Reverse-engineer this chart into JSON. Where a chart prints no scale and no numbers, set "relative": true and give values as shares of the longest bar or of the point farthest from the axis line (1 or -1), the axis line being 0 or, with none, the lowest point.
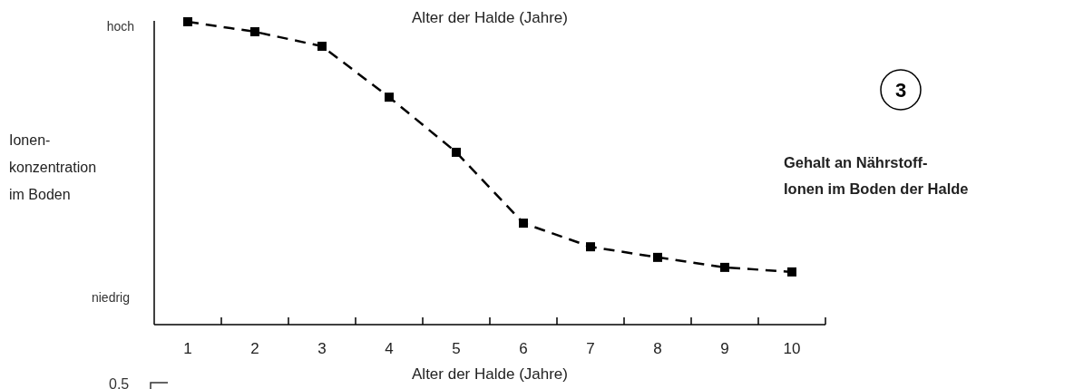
{
  "chart_data": {
    "type": "line",
    "title": "Gehalt an Nährstoff-Ionen im Boden der Halde",
    "xlabel": "Alter der Halde (Jahre)",
    "ylabel": "Ionen-konzentration im Boden",
    "relative": true,
    "categories": [
      "1",
      "2",
      "3",
      "4",
      "5",
      "6",
      "7",
      "8",
      "9",
      "10"
    ],
    "series": [
      {
        "color": "#000000",
        "values": [
          1,
          0.967,
          0.919,
          0.751,
          0.569,
          0.335,
          0.257,
          0.222,
          0.189,
          0.174
        ]
      }
    ],
    "marker": "square",
    "line_style": "dashed",
    "annotations": [
      "hoch",
      "niedrig",
      "3",
      "Alter der Halde (Jahre)",
      "0.5"
    ]
  }
}
